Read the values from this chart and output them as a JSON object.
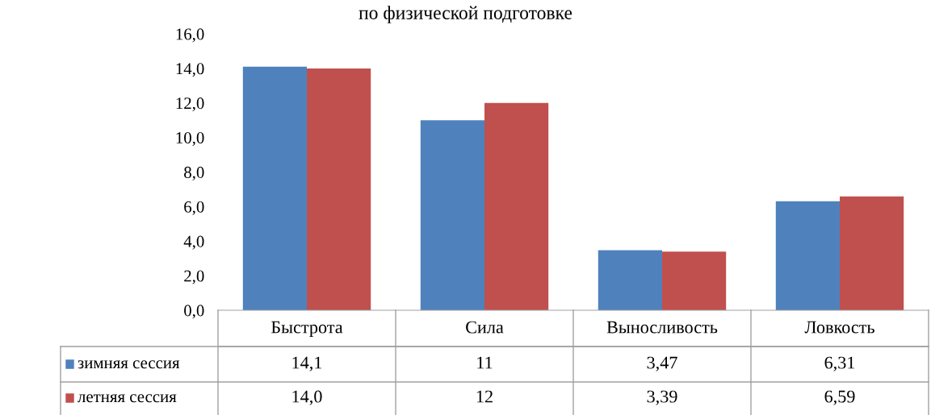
{
  "chart_data": {
    "type": "bar",
    "title": "по физической подготовке",
    "categories": [
      "Быстрота",
      "Сила",
      "Выносливость",
      "Ловкость"
    ],
    "series": [
      {
        "name": "зимняя сессия",
        "color": "#4f81bd",
        "values": [
          14.1,
          11,
          3.47,
          6.31
        ],
        "value_labels": [
          "14,1",
          "11",
          "3,47",
          "6,31"
        ]
      },
      {
        "name": "летняя сессия",
        "color": "#c0504d",
        "values": [
          14.0,
          12,
          3.39,
          6.59
        ],
        "value_labels": [
          "14,0",
          "12",
          "3,39",
          "6,59"
        ]
      }
    ],
    "ylim": [
      0,
      16
    ],
    "yticks": [
      {
        "value": 0,
        "label": "0,0"
      },
      {
        "value": 2,
        "label": "2,0"
      },
      {
        "value": 4,
        "label": "4,0"
      },
      {
        "value": 6,
        "label": "6,0"
      },
      {
        "value": 8,
        "label": "8,0"
      },
      {
        "value": 10,
        "label": "10,0"
      },
      {
        "value": 12,
        "label": "12,0"
      },
      {
        "value": 14,
        "label": "14,0"
      },
      {
        "value": 16,
        "label": "16,0"
      }
    ],
    "grid": false,
    "legend": "bottom left"
  }
}
